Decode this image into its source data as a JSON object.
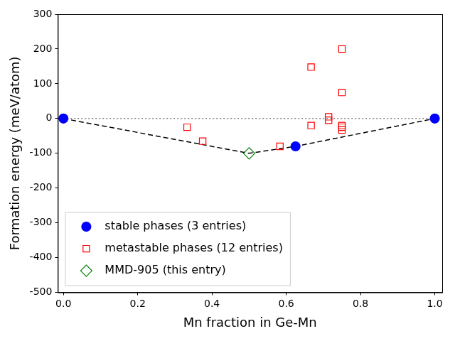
{
  "chart_data": {
    "type": "scatter",
    "x_label": "Mn fraction in Ge-Mn",
    "y_label": "Formation energy (meV/atom)",
    "xlim": [
      -0.015,
      1.02
    ],
    "xticks": [
      {
        "value": 0,
        "label": "0.0"
      },
      0.2,
      0.4,
      0.6,
      0.8,
      {
        "value": 1,
        "label": "1.0"
      }
    ],
    "ylim": [
      -500,
      300
    ],
    "yticks": [
      -500,
      -400,
      -300,
      -200,
      -100,
      0,
      100,
      200,
      300
    ],
    "grid": false,
    "legend": "lower left",
    "series": [
      {
        "name": "stable phases (3 entries)",
        "color": "#0000ff",
        "marker": "circle",
        "x": [
          0,
          0.625,
          1
        ],
        "values": [
          0,
          -80,
          0
        ]
      },
      {
        "name": "metastable phases (12 entries)",
        "color": "#ff0000",
        "marker": "open_square",
        "x": [
          0.333,
          0.375,
          0.583,
          0.667,
          0.667,
          0.714,
          0.714,
          0.75,
          0.75,
          0.75,
          0.75,
          0.75
        ],
        "values": [
          -25,
          -65,
          -80,
          148,
          -20,
          5,
          -5,
          200,
          75,
          -20,
          -25,
          -33
        ]
      },
      {
        "name": "MMD-905 (this entry)",
        "color": "#008000",
        "marker": "open_diamond",
        "x": [
          0.5
        ],
        "values": [
          -100
        ]
      },
      {
        "color": "#000000",
        "line_style": "dashed",
        "x": [
          0,
          0.5,
          0.625,
          1
        ],
        "values": [
          0,
          -100,
          -80,
          0
        ]
      },
      {
        "color": "#808080",
        "line_style": "dotted",
        "x": [
          0,
          1
        ],
        "values": [
          0,
          0
        ]
      }
    ]
  }
}
